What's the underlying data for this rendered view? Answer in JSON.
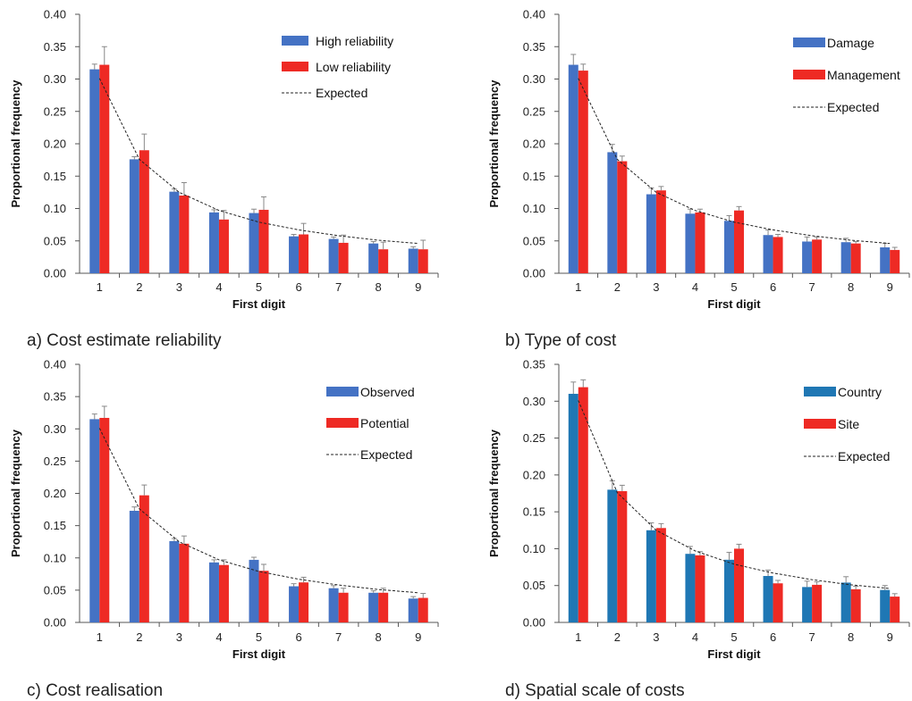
{
  "colors": {
    "blue": "#4472C4",
    "red": "#EE2A24",
    "blue_alt": "#1F77B4",
    "errorbar": "#888888",
    "expected_line": "#222222"
  },
  "chart_data": [
    {
      "type": "bar",
      "caption": "a)  Cost estimate reliability",
      "xlabel": "First digit",
      "ylabel": "Proportional frequency",
      "ylim": [
        0,
        0.4
      ],
      "yticks": [
        "0.00",
        "0.05",
        "0.10",
        "0.15",
        "0.20",
        "0.25",
        "0.30",
        "0.35",
        "0.40"
      ],
      "categories": [
        "1",
        "2",
        "3",
        "4",
        "5",
        "6",
        "7",
        "8",
        "9"
      ],
      "legend_position": "top-right",
      "series": [
        {
          "name": "High reliability",
          "color": "#4472C4",
          "values": [
            0.315,
            0.176,
            0.126,
            0.094,
            0.093,
            0.057,
            0.053,
            0.046,
            0.038
          ],
          "errors": [
            0.008,
            0.004,
            0.004,
            0.004,
            0.006,
            0.003,
            0.003,
            0.003,
            0.003
          ]
        },
        {
          "name": "Low reliability",
          "color": "#EE2A24",
          "values": [
            0.322,
            0.19,
            0.12,
            0.083,
            0.098,
            0.06,
            0.047,
            0.037,
            0.037
          ],
          "errors": [
            0.028,
            0.025,
            0.02,
            0.014,
            0.02,
            0.017,
            0.012,
            0.011,
            0.014
          ]
        }
      ],
      "expected": {
        "name": "Expected",
        "values": [
          0.301,
          0.176,
          0.125,
          0.097,
          0.079,
          0.067,
          0.058,
          0.051,
          0.046
        ]
      }
    },
    {
      "type": "bar",
      "caption": "b)  Type of cost",
      "xlabel": "First digit",
      "ylabel": "Proportional frequency",
      "ylim": [
        0,
        0.4
      ],
      "yticks": [
        "0.00",
        "0.05",
        "0.10",
        "0.15",
        "0.20",
        "0.25",
        "0.30",
        "0.35",
        "0.40"
      ],
      "categories": [
        "1",
        "2",
        "3",
        "4",
        "5",
        "6",
        "7",
        "8",
        "9"
      ],
      "legend_position": "top-right",
      "series": [
        {
          "name": "Damage",
          "color": "#4472C4",
          "values": [
            0.322,
            0.187,
            0.122,
            0.092,
            0.081,
            0.059,
            0.049,
            0.048,
            0.04
          ],
          "errors": [
            0.016,
            0.012,
            0.01,
            0.007,
            0.008,
            0.008,
            0.007,
            0.006,
            0.006
          ]
        },
        {
          "name": "Management",
          "color": "#EE2A24",
          "values": [
            0.313,
            0.173,
            0.128,
            0.094,
            0.097,
            0.056,
            0.052,
            0.046,
            0.036
          ],
          "errors": [
            0.01,
            0.008,
            0.006,
            0.005,
            0.006,
            0.004,
            0.004,
            0.003,
            0.004
          ]
        }
      ],
      "expected": {
        "name": "Expected",
        "values": [
          0.301,
          0.176,
          0.125,
          0.097,
          0.079,
          0.067,
          0.058,
          0.051,
          0.046
        ]
      }
    },
    {
      "type": "bar",
      "caption": "c)  Cost realisation",
      "xlabel": "First digit",
      "ylabel": "Proportional frequency",
      "ylim": [
        0,
        0.4
      ],
      "yticks": [
        "0.00",
        "0.05",
        "0.10",
        "0.15",
        "0.20",
        "0.25",
        "0.30",
        "0.35",
        "0.40"
      ],
      "categories": [
        "1",
        "2",
        "3",
        "4",
        "5",
        "6",
        "7",
        "8",
        "9"
      ],
      "legend_position": "top-right",
      "series": [
        {
          "name": "Observed",
          "color": "#4472C4",
          "values": [
            0.315,
            0.173,
            0.126,
            0.093,
            0.097,
            0.056,
            0.053,
            0.046,
            0.037
          ],
          "errors": [
            0.008,
            0.006,
            0.004,
            0.004,
            0.004,
            0.004,
            0.004,
            0.003,
            0.003
          ]
        },
        {
          "name": "Potential",
          "color": "#EE2A24",
          "values": [
            0.317,
            0.197,
            0.122,
            0.089,
            0.08,
            0.062,
            0.046,
            0.046,
            0.038
          ],
          "errors": [
            0.018,
            0.016,
            0.012,
            0.008,
            0.01,
            0.008,
            0.007,
            0.007,
            0.007
          ]
        }
      ],
      "expected": {
        "name": "Expected",
        "values": [
          0.301,
          0.176,
          0.125,
          0.097,
          0.079,
          0.067,
          0.058,
          0.051,
          0.046
        ]
      }
    },
    {
      "type": "bar",
      "caption": "d)  Spatial scale of costs",
      "xlabel": "First digit",
      "ylabel": "Proportional frequency",
      "ylim": [
        0,
        0.35
      ],
      "yticks": [
        "0.00",
        "0.05",
        "0.10",
        "0.15",
        "0.20",
        "0.25",
        "0.30",
        "0.35"
      ],
      "categories": [
        "1",
        "2",
        "3",
        "4",
        "5",
        "6",
        "7",
        "8",
        "9"
      ],
      "legend_position": "top-right",
      "series": [
        {
          "name": "Country",
          "color": "#1F77B4",
          "values": [
            0.31,
            0.18,
            0.125,
            0.093,
            0.085,
            0.063,
            0.048,
            0.054,
            0.044
          ],
          "errors": [
            0.016,
            0.012,
            0.01,
            0.01,
            0.01,
            0.008,
            0.008,
            0.008,
            0.006
          ]
        },
        {
          "name": "Site",
          "color": "#EE2A24",
          "values": [
            0.319,
            0.178,
            0.128,
            0.091,
            0.1,
            0.053,
            0.051,
            0.045,
            0.035
          ],
          "errors": [
            0.01,
            0.008,
            0.006,
            0.005,
            0.006,
            0.004,
            0.004,
            0.004,
            0.004
          ]
        }
      ],
      "expected": {
        "name": "Expected",
        "values": [
          0.301,
          0.176,
          0.125,
          0.097,
          0.079,
          0.067,
          0.058,
          0.051,
          0.046
        ]
      }
    }
  ]
}
